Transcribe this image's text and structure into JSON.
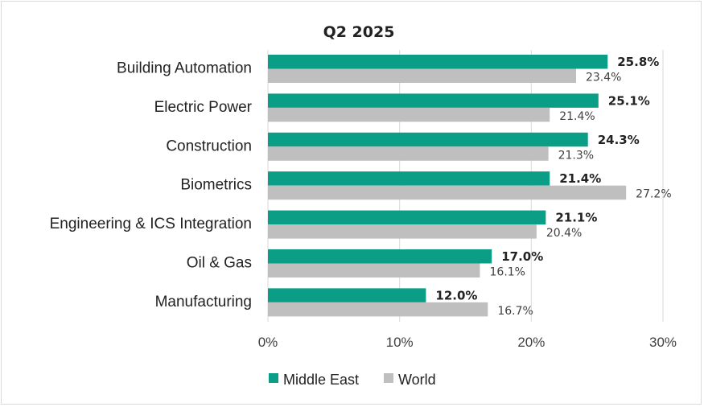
{
  "chart_data": {
    "type": "bar",
    "orientation": "horizontal",
    "title": "Q2 2025",
    "categories": [
      "Building Automation",
      "Electric Power",
      "Construction",
      "Biometrics",
      "Engineering & ICS Integration",
      "Oil & Gas",
      "Manufacturing"
    ],
    "series": [
      {
        "name": "Middle East",
        "color": "#0a9e87",
        "values": [
          25.8,
          25.1,
          24.3,
          21.4,
          21.1,
          17.0,
          12.0
        ],
        "labels": [
          "25.8%",
          "25.1%",
          "24.3%",
          "21.4%",
          "21.1%",
          "17.0%",
          "12.0%"
        ]
      },
      {
        "name": "World",
        "color": "#bfbfbf",
        "values": [
          23.4,
          21.4,
          21.3,
          27.2,
          20.4,
          16.1,
          16.7
        ],
        "labels": [
          "23.4%",
          "21.4%",
          "21.3%",
          "27.2%",
          "20.4%",
          "16.1%",
          "16.7%"
        ]
      }
    ],
    "xlim": [
      0,
      30
    ],
    "xticks": [
      "0%",
      "10%",
      "20%",
      "30%"
    ],
    "grid": true,
    "legend_position": "bottom"
  }
}
